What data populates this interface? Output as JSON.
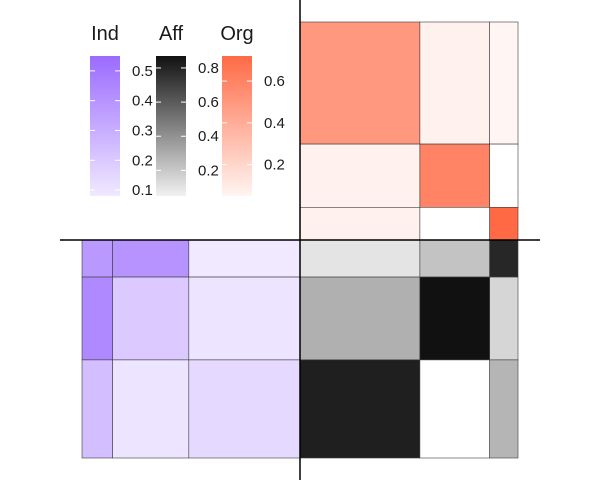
{
  "chart_data": {
    "type": "heatmap",
    "description_role": "mosaic block plot",
    "colors": {
      "Ind": {
        "low": "#ffffff",
        "high": "#9b6bff"
      },
      "Aff": {
        "low": "#ffffff",
        "high": "#111111"
      },
      "Org": {
        "low": "#ffffff",
        "high": "#ff6a45"
      }
    },
    "legends": [
      {
        "name": "Ind",
        "ticks": [
          "0.5",
          "0.4",
          "0.3",
          "0.2",
          "0.1"
        ],
        "tick_values": [
          0.5,
          0.4,
          0.3,
          0.2,
          0.1
        ],
        "range": [
          0.08,
          0.55
        ]
      },
      {
        "name": "Aff",
        "ticks": [
          "0.8",
          "0.6",
          "0.4",
          "0.2"
        ],
        "tick_values": [
          0.8,
          0.6,
          0.4,
          0.2
        ],
        "range": [
          0.05,
          0.87
        ]
      },
      {
        "name": "Org",
        "ticks": [
          "0.6",
          "0.4",
          "0.2"
        ],
        "tick_values": [
          0.6,
          0.4,
          0.2
        ],
        "range": [
          0.05,
          0.72
        ]
      }
    ],
    "blocks": {
      "Ind": {
        "col_weights": [
          0.14,
          0.35,
          0.51
        ],
        "row_weights": [
          0.17,
          0.38,
          0.45
        ],
        "values": [
          [
            0.38,
            0.4,
            0.08
          ],
          [
            0.44,
            0.2,
            0.1
          ],
          [
            0.24,
            0.1,
            0.14
          ]
        ]
      },
      "Org": {
        "col_weights": [
          0.55,
          0.32,
          0.13
        ],
        "row_weights": [
          0.56,
          0.29,
          0.15
        ],
        "values": [
          [
            0.5,
            0.07,
            0.05
          ],
          [
            0.07,
            0.6,
            0.0
          ],
          [
            0.07,
            0.0,
            0.72
          ]
        ]
      },
      "Aff": {
        "col_weights": [
          0.55,
          0.32,
          0.13
        ],
        "row_weights": [
          0.17,
          0.38,
          0.45
        ],
        "values": [
          [
            0.1,
            0.22,
            0.79
          ],
          [
            0.29,
            0.88,
            0.15
          ],
          [
            0.82,
            0.0,
            0.27
          ]
        ]
      }
    }
  }
}
